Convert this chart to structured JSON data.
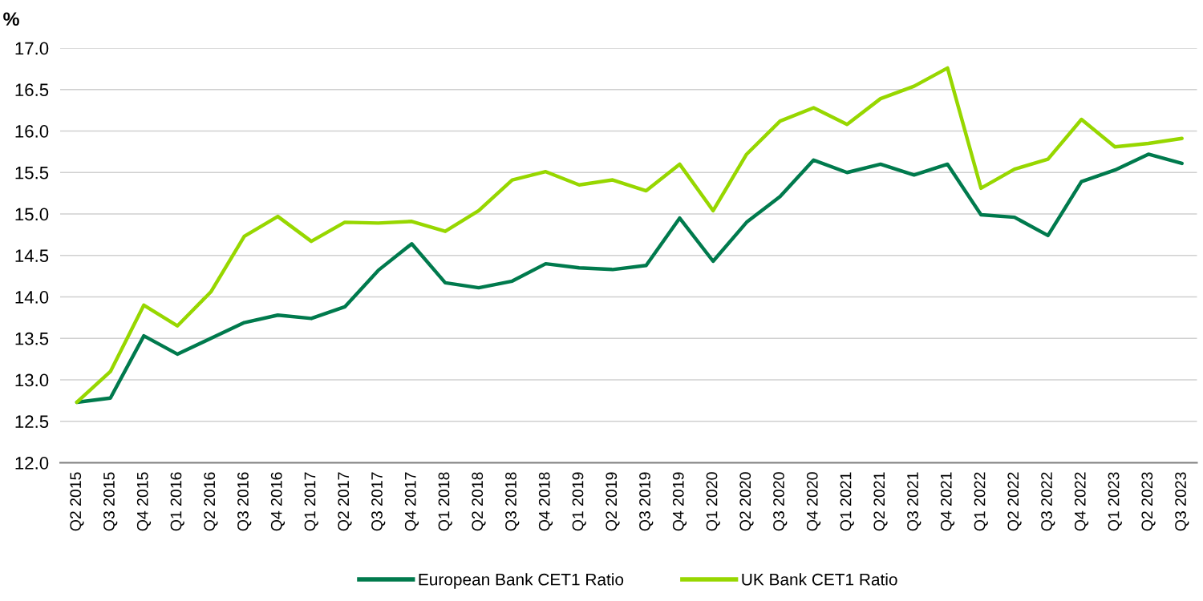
{
  "chart_data": {
    "type": "line",
    "ylabel": "%",
    "categories": [
      "Q2 2015",
      "Q3 2015",
      "Q4 2015",
      "Q1 2016",
      "Q2 2016",
      "Q3 2016",
      "Q4 2016",
      "Q1 2017",
      "Q2 2017",
      "Q3 2017",
      "Q4 2017",
      "Q1 2018",
      "Q2 2018",
      "Q3 2018",
      "Q4 2018",
      "Q1 2019",
      "Q2 2019",
      "Q3 2019",
      "Q4 2019",
      "Q1 2020",
      "Q2 2020",
      "Q3 2020",
      "Q4 2020",
      "Q1 2021",
      "Q2 2021",
      "Q3 2021",
      "Q4 2021",
      "Q1 2022",
      "Q2 2022",
      "Q3 2022",
      "Q4 2022",
      "Q1 2023",
      "Q2 2023",
      "Q3 2023"
    ],
    "series": [
      {
        "name": "European Bank CET1 Ratio",
        "color": "#007a4d",
        "values": [
          12.73,
          12.78,
          13.53,
          13.31,
          13.5,
          13.69,
          13.78,
          13.74,
          13.88,
          14.32,
          14.64,
          14.17,
          14.11,
          14.19,
          14.4,
          14.35,
          14.33,
          14.38,
          14.95,
          14.43,
          14.9,
          15.21,
          15.65,
          15.5,
          15.6,
          15.47,
          15.6,
          14.99,
          14.96,
          14.74,
          15.39,
          15.53,
          15.72,
          15.61
        ]
      },
      {
        "name": "UK Bank CET1 Ratio",
        "color": "#97d700",
        "values": [
          12.73,
          13.1,
          13.9,
          13.65,
          14.06,
          14.73,
          14.97,
          14.67,
          14.9,
          14.89,
          14.91,
          14.79,
          15.04,
          15.41,
          15.51,
          15.35,
          15.41,
          15.28,
          15.6,
          15.04,
          15.72,
          16.12,
          16.28,
          16.08,
          16.39,
          16.54,
          16.76,
          15.31,
          15.54,
          15.66,
          16.14,
          15.81,
          15.85,
          15.91
        ]
      }
    ],
    "ylim": [
      12,
      17
    ],
    "yticks": [
      {
        "value": 12,
        "label": "12.0"
      },
      12.5,
      {
        "value": 13,
        "label": "13.0"
      },
      13.5,
      {
        "value": 14,
        "label": "14.0"
      },
      14.5,
      {
        "value": 15,
        "label": "15.0"
      },
      15.5,
      {
        "value": 16,
        "label": "16.0"
      },
      16.5,
      {
        "value": 17,
        "label": "17.0"
      }
    ],
    "grid": "y",
    "legend": "bottom",
    "marker": "none",
    "line_style": "solid"
  }
}
